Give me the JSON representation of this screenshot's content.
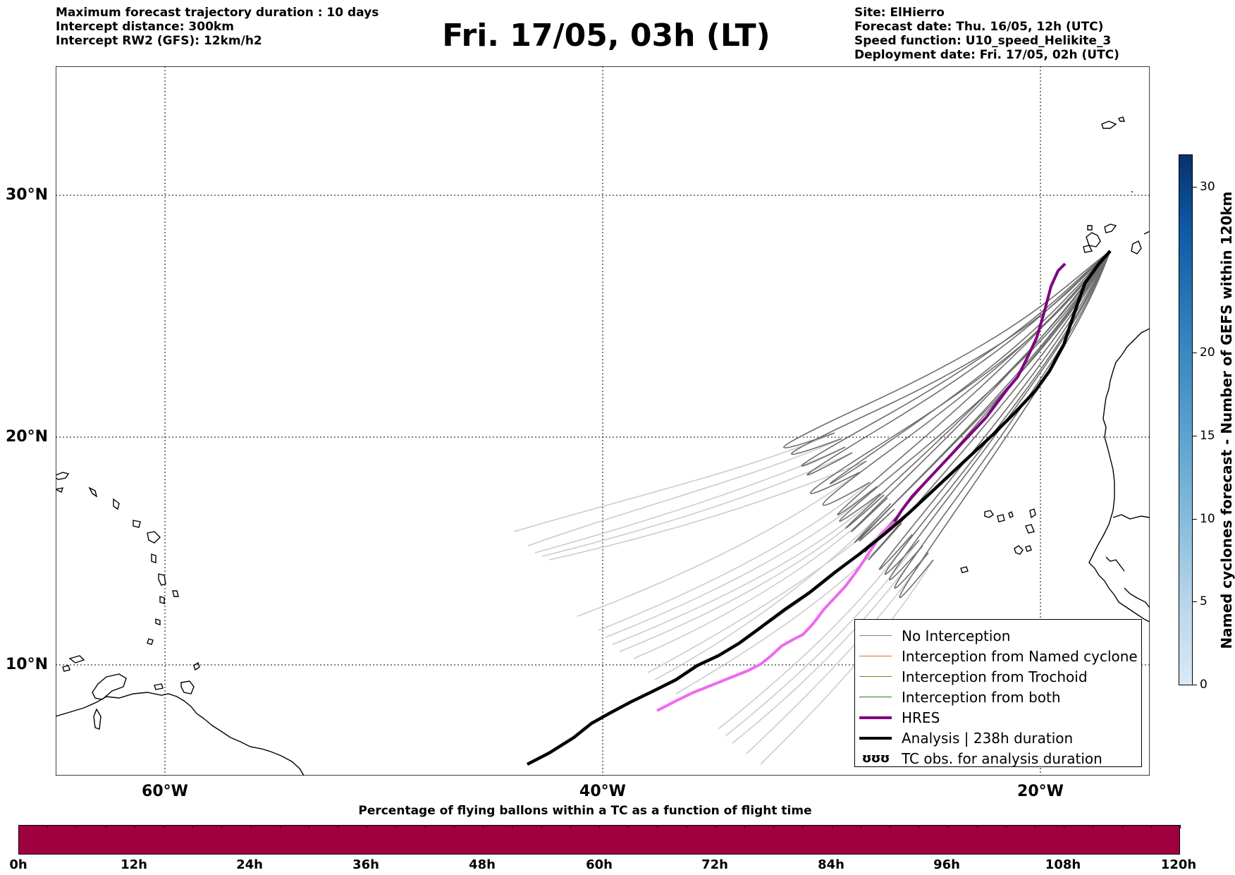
{
  "header": {
    "left_lines": [
      "Maximum forecast trajectory duration : 10 days",
      "Intercept distance: 300km",
      "Intercept RW2 (GFS):  12km/h2"
    ],
    "title": "Fri. 17/05, 03h (LT)",
    "right_lines": [
      "Site: ElHierro",
      "Forecast date: Thu. 16/05, 12h (UTC)",
      "Speed function: U10_speed_Helikite_3",
      "Deployment date: Fri. 17/05, 02h (UTC)"
    ]
  },
  "map": {
    "lat_labels": [
      "30°N",
      "20°N",
      "10°N"
    ],
    "lon_labels": [
      "60°W",
      "40°W",
      "20°W"
    ],
    "grid": "dotted",
    "colors": {
      "ensemble_no_interception": "#6e6e6e",
      "ensemble_late": "#cccccc",
      "hres": "#800080",
      "hres_late": "#ee6aee",
      "analysis": "#000000",
      "coastline": "#000000"
    }
  },
  "legend": {
    "items": [
      {
        "label": "No Interception",
        "color": "#808080"
      },
      {
        "label": "Interception from Named cyclone",
        "color": "#e8602c"
      },
      {
        "label": "Interception from Trochoid",
        "color": "#808020"
      },
      {
        "label": "Interception from both",
        "color": "#208020"
      },
      {
        "label": "HRES",
        "color": "#800080"
      },
      {
        "label": "Analysis | 238h duration",
        "color": "#000000"
      },
      {
        "label": "TC obs. for analysis duration",
        "glyph": "ʊʊʊ"
      }
    ]
  },
  "colorbar_vertical": {
    "title": "Named cyclones forecast - Number of GEFS within 120km",
    "tick_labels": [
      "0",
      "5",
      "10",
      "15",
      "20",
      "30"
    ],
    "range": [
      0,
      32
    ]
  },
  "colorbar_horizontal": {
    "title": "Percentage of flying ballons within a TC as a function of flight time",
    "tick_labels": [
      "0h",
      "12h",
      "24h",
      "36h",
      "48h",
      "60h",
      "72h",
      "84h",
      "96h",
      "108h",
      "120h"
    ],
    "color": "#a1003f"
  }
}
